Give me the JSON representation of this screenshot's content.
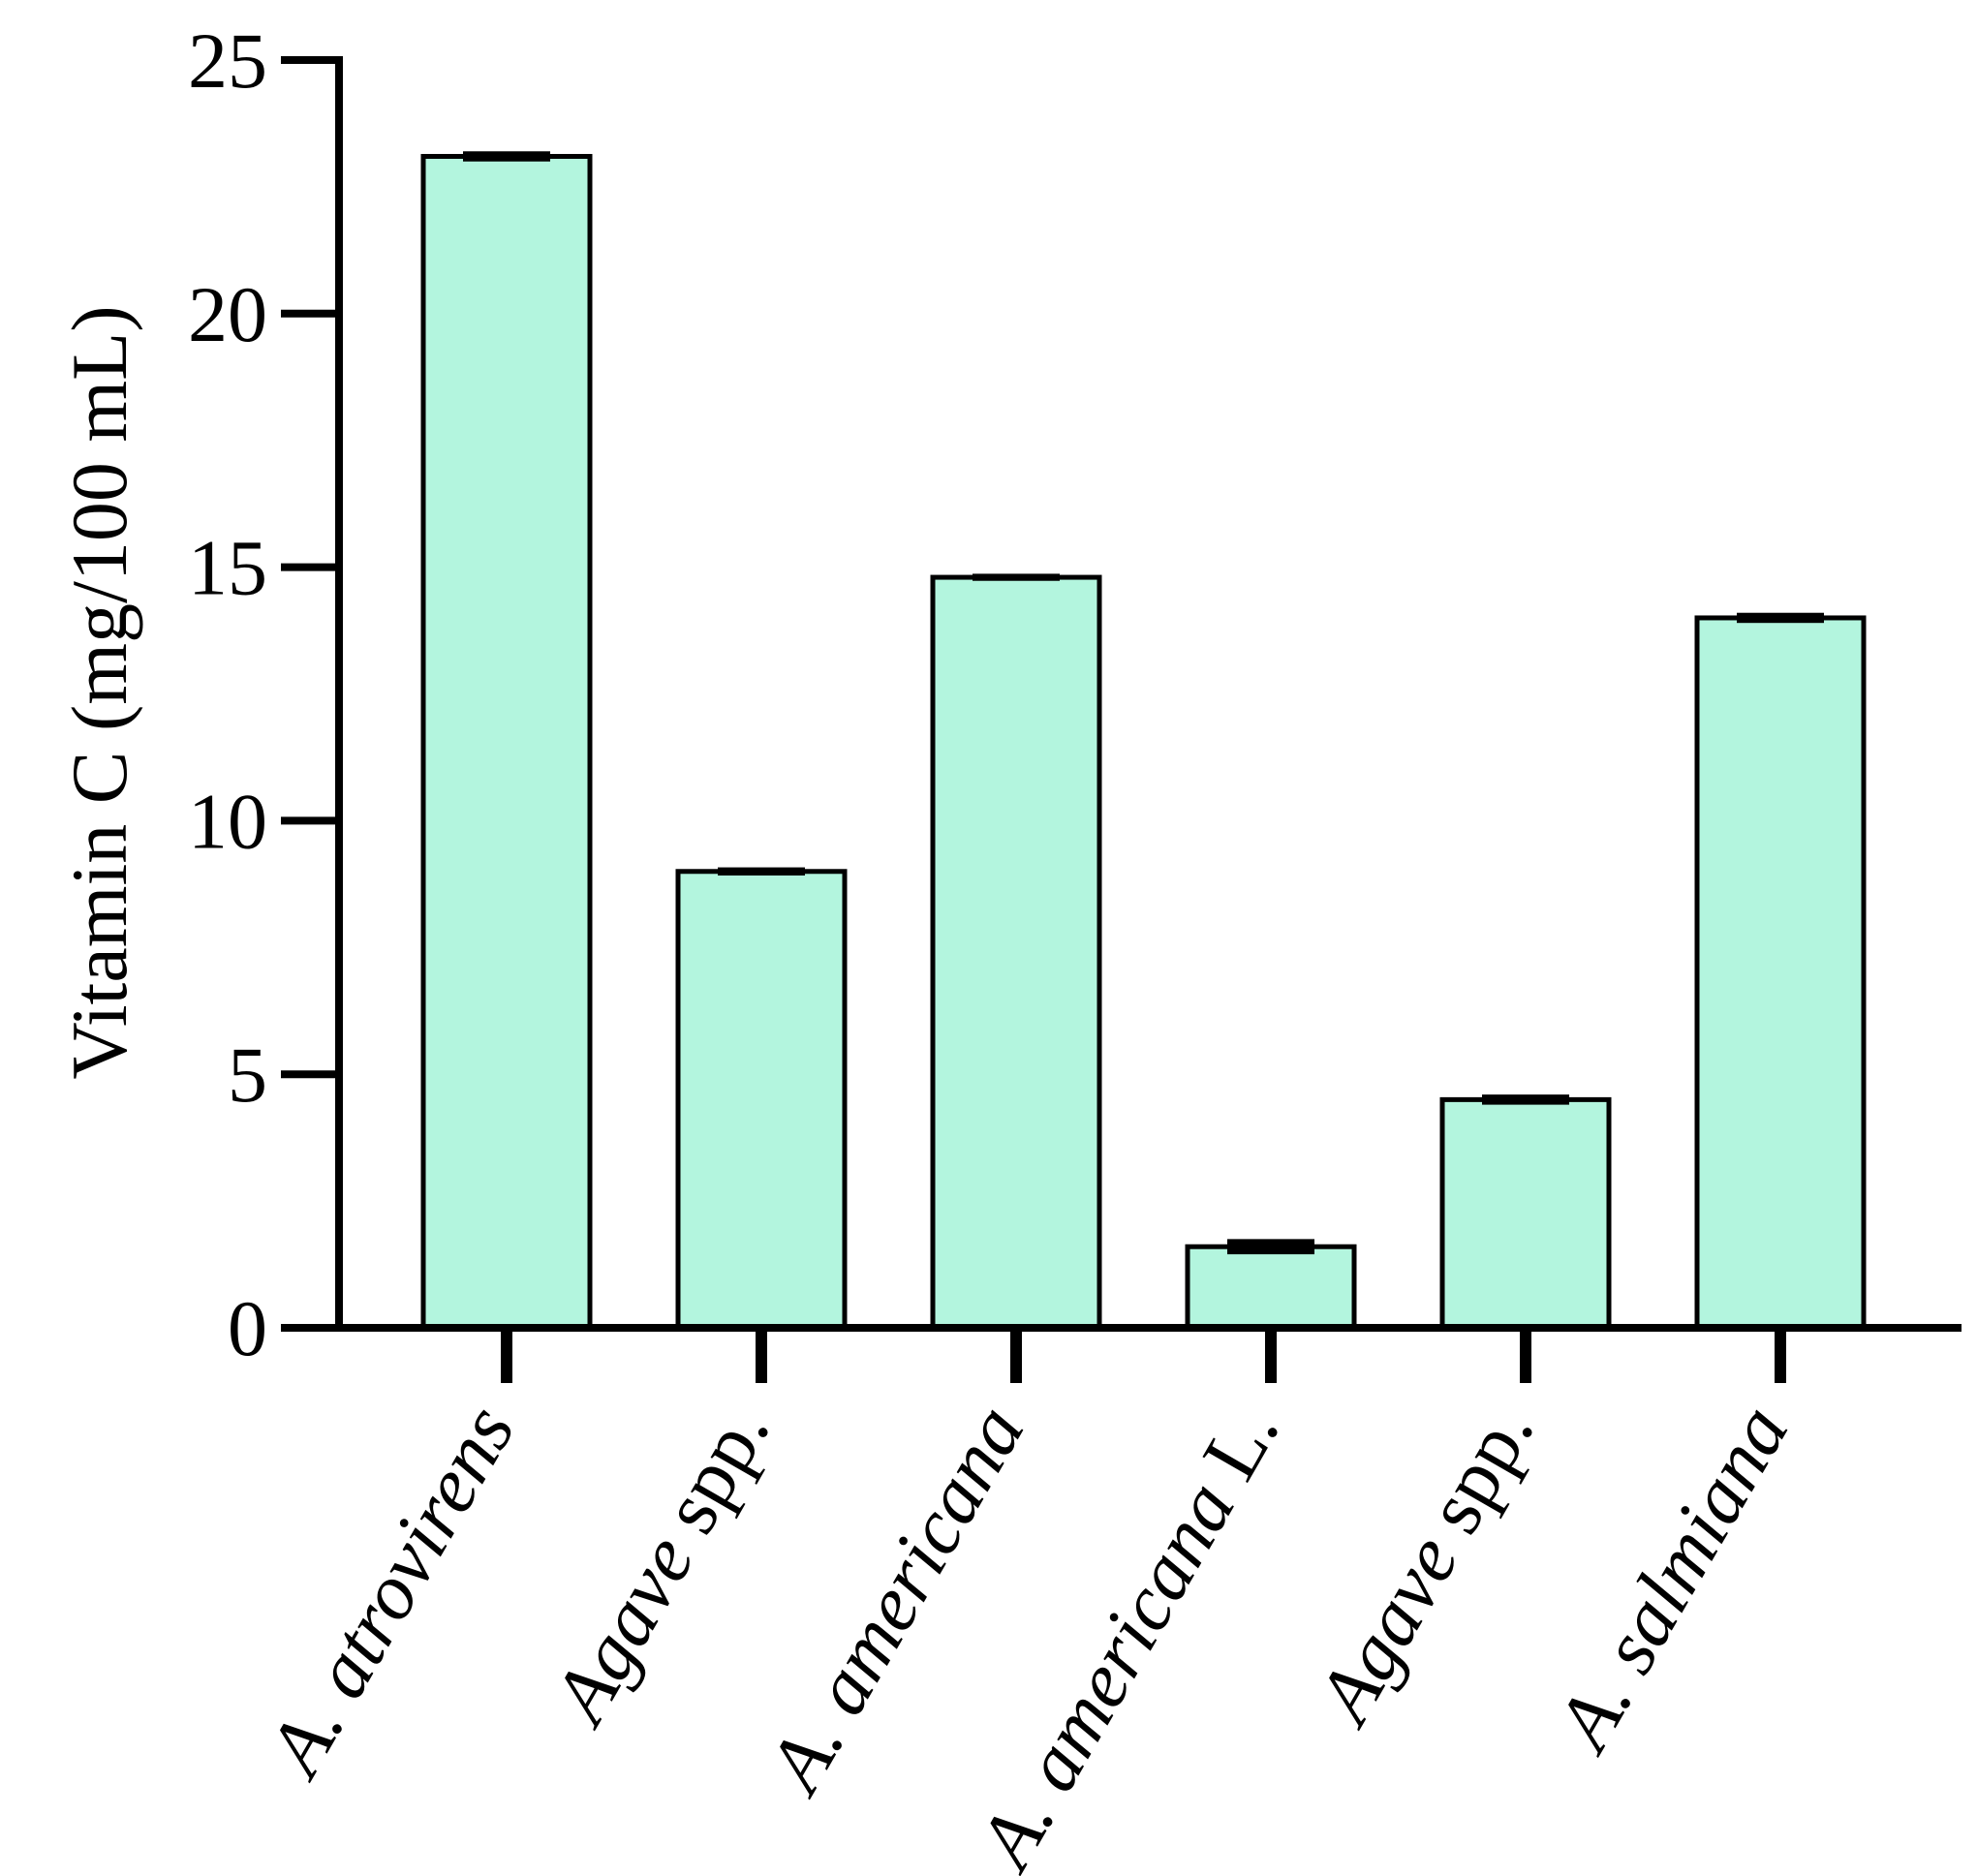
{
  "chart_data": {
    "type": "bar",
    "title": "",
    "xlabel": "",
    "ylabel": "Vitamin C (mg/100 mL)",
    "ylim": [
      0,
      25
    ],
    "yticks": [
      0,
      5,
      10,
      15,
      20,
      25
    ],
    "grid": false,
    "categories": [
      [
        {
          "text": "A. atrovirens",
          "italic": true
        }
      ],
      [
        {
          "text": "Agave",
          "italic": true
        },
        {
          "text": " spp.",
          "italic": false
        }
      ],
      [
        {
          "text": "A. americana",
          "italic": true
        }
      ],
      [
        {
          "text": "A. americana",
          "italic": true
        },
        {
          "text": " L.",
          "italic": false
        }
      ],
      [
        {
          "text": "Agave",
          "italic": true
        },
        {
          "text": " spp.",
          "italic": false
        }
      ],
      [
        {
          "text": "A. salmiana",
          "italic": true
        }
      ]
    ],
    "values": [
      23.1,
      9.0,
      14.8,
      1.6,
      4.5,
      14.0
    ],
    "errors": [
      0.1,
      0.08,
      0.07,
      0.15,
      0.1,
      0.1
    ],
    "bar_color": "#b3f5de",
    "edge_color": "#000000"
  }
}
